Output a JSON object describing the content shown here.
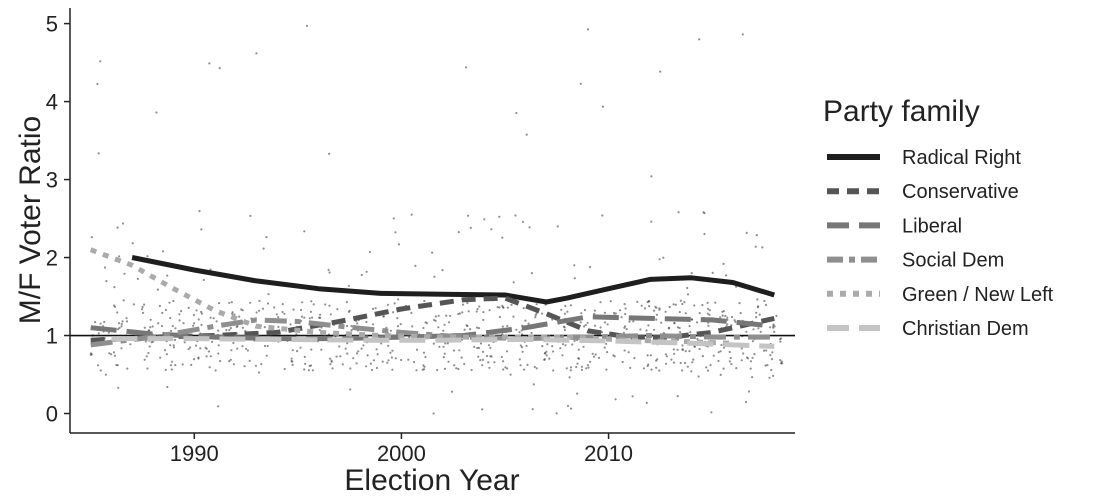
{
  "chart_data": {
    "type": "line",
    "title": "",
    "xlabel": "Election Year",
    "ylabel": "M/F Voter Ratio",
    "xlim": [
      1984,
      2019
    ],
    "ylim": [
      -0.25,
      5.2
    ],
    "x_ticks": [
      1990,
      2000,
      2010
    ],
    "y_ticks": [
      0,
      1,
      2,
      3,
      4,
      5
    ],
    "reference_line_y": 1,
    "grid": false,
    "legend": {
      "title": "Party family",
      "position": "right"
    },
    "series": [
      {
        "name": "Radical Right",
        "color": "#1e1e1e",
        "dash": "solid",
        "width": 5,
        "x": [
          1987,
          1990,
          1993,
          1996,
          1999,
          2002,
          2005,
          2007,
          2008,
          2010,
          2012,
          2014,
          2016,
          2018
        ],
        "y": [
          2.0,
          1.84,
          1.7,
          1.6,
          1.54,
          1.53,
          1.52,
          1.43,
          1.48,
          1.6,
          1.72,
          1.74,
          1.68,
          1.52
        ]
      },
      {
        "name": "Conservative",
        "color": "#555555",
        "dash": "dashed",
        "width": 5,
        "x": [
          1985,
          1988,
          1991,
          1994,
          1997,
          2000,
          2003,
          2005,
          2007,
          2009,
          2011,
          2013,
          2015,
          2018
        ],
        "y": [
          0.94,
          0.98,
          1.0,
          1.04,
          1.18,
          1.34,
          1.46,
          1.48,
          1.28,
          1.06,
          0.98,
          0.98,
          1.04,
          1.22
        ]
      },
      {
        "name": "Liberal",
        "color": "#777777",
        "dash": "longdash",
        "width": 5,
        "x": [
          1985,
          1988,
          1991,
          1994,
          1997,
          2000,
          2003,
          2006,
          2009,
          2012,
          2015,
          2018
        ],
        "y": [
          1.1,
          1.02,
          0.98,
          0.96,
          0.96,
          0.98,
          1.0,
          1.1,
          1.24,
          1.22,
          1.2,
          1.12
        ]
      },
      {
        "name": "Social Dem",
        "color": "#8f8f8f",
        "dash": "dashdot",
        "width": 5,
        "x": [
          1985,
          1988,
          1991,
          1993,
          1995,
          1997,
          2000,
          2003,
          2006,
          2009,
          2012,
          2015,
          2018
        ],
        "y": [
          0.88,
          0.98,
          1.12,
          1.2,
          1.18,
          1.12,
          1.04,
          0.98,
          0.96,
          0.98,
          1.0,
          0.98,
          0.98
        ]
      },
      {
        "name": "Green / New Left",
        "color": "#aaaaaa",
        "dash": "dotted",
        "width": 5,
        "x": [
          1985,
          1987,
          1989,
          1991,
          1993,
          1996,
          1999,
          2002,
          2005,
          2008,
          2011,
          2014,
          2016
        ],
        "y": [
          2.1,
          1.9,
          1.6,
          1.32,
          1.12,
          1.04,
          1.0,
          0.98,
          0.98,
          0.98,
          0.94,
          0.92,
          0.9
        ]
      },
      {
        "name": "Christian Dem",
        "color": "#c4c4c4",
        "dash": "longdash",
        "width": 5,
        "x": [
          1986,
          1990,
          1994,
          1998,
          2002,
          2006,
          2010,
          2014,
          2018
        ],
        "y": [
          0.96,
          0.96,
          0.95,
          0.94,
          0.94,
          0.95,
          0.93,
          0.9,
          0.86
        ]
      }
    ]
  },
  "colors": {
    "axis": "#222222",
    "points": "#333333"
  }
}
